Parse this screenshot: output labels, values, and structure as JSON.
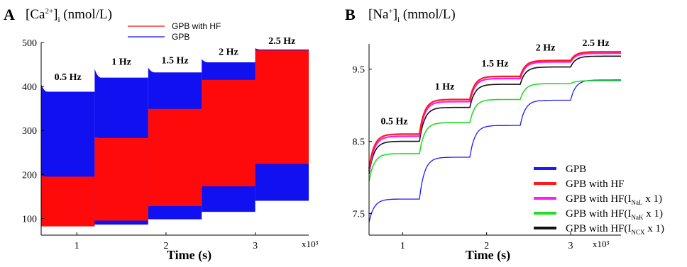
{
  "chart_data": [
    {
      "id": "A",
      "type": "area",
      "panel_label": "A",
      "title": {
        "main": "[Ca",
        "sup": "2+",
        "close": "]",
        "sub": "i",
        "unit": " (nmol/L)"
      },
      "xlabel": "Time (s)",
      "x_multiplier": "x10³",
      "xlim": [
        0.6,
        3.6
      ],
      "ylim": [
        62,
        500
      ],
      "xticks": [
        1,
        2,
        3
      ],
      "xtick_labels": [
        "1",
        "2",
        "3"
      ],
      "yticks": [
        100,
        200,
        300,
        400,
        500
      ],
      "ytick_labels": [
        "100",
        "200",
        "300",
        "400",
        "500"
      ],
      "pacing_labels": [
        "0.5 Hz",
        "1 Hz",
        "1.5 Hz",
        "2 Hz",
        "2.5 Hz"
      ],
      "legend_position": "top",
      "series": [
        {
          "name": "GPB",
          "color": "#1010f0",
          "segments": [
            {
              "x": [
                0.6,
                1.2
              ],
              "min": 85,
              "max_start": 405,
              "max": 388
            },
            {
              "x": [
                1.2,
                1.8
              ],
              "min": 86,
              "max_start": 440,
              "max": 420
            },
            {
              "x": [
                1.8,
                2.4
              ],
              "min": 98,
              "max_start": 443,
              "max": 432
            },
            {
              "x": [
                2.4,
                3.0
              ],
              "min": 115,
              "max_start": 462,
              "max": 455
            },
            {
              "x": [
                3.0,
                3.6
              ],
              "min": 140,
              "max_start": 487,
              "max": 484
            }
          ]
        },
        {
          "name": "GPB with HF",
          "color": "#ff0a0a",
          "segments": [
            {
              "x": [
                0.6,
                1.2
              ],
              "min": 82,
              "max_start": 197,
              "max": 195
            },
            {
              "x": [
                1.2,
                1.8
              ],
              "min": 95,
              "max_start": 285,
              "max": 283
            },
            {
              "x": [
                1.8,
                2.4
              ],
              "min": 128,
              "max_start": 349,
              "max": 349
            },
            {
              "x": [
                2.4,
                3.0
              ],
              "min": 173,
              "max_start": 415,
              "max": 415
            },
            {
              "x": [
                3.0,
                3.6
              ],
              "min": 224,
              "max_start": 482,
              "max": 482
            }
          ]
        }
      ]
    },
    {
      "id": "B",
      "type": "line",
      "panel_label": "B",
      "title": {
        "main": "[Na",
        "sup": "+",
        "close": "]",
        "sub": "i",
        "unit": " (mmol/L)"
      },
      "xlabel": "Time (s)",
      "x_multiplier": "x10³",
      "xlim": [
        0.6,
        3.6
      ],
      "ylim": [
        7.2,
        9.85
      ],
      "xticks": [
        1,
        2,
        3
      ],
      "xtick_labels": [
        "1",
        "2",
        "3"
      ],
      "yticks": [
        7.5,
        8.5,
        9.5
      ],
      "ytick_labels": [
        "7.5",
        "8.5",
        "9.5"
      ],
      "pacing_labels": [
        "0.5 Hz",
        "1 Hz",
        "1.5 Hz",
        "2 Hz",
        "2.5 Hz"
      ],
      "legend_position": "lower right",
      "series": [
        {
          "name": "GPB",
          "legend": {
            "text": "GPB"
          },
          "color": "#1a1aff",
          "width": 1.3,
          "start": 7.38,
          "levels": [
            7.7,
            8.28,
            8.72,
            9.07,
            9.35
          ]
        },
        {
          "name": "GPB with HF",
          "legend": {
            "text": "GPB with HF"
          },
          "color": "#ff1a1a",
          "width": 2.2,
          "start": 8.12,
          "levels": [
            8.6,
            9.08,
            9.4,
            9.62,
            9.74
          ]
        },
        {
          "name": "GPB with HF(INaL x 1)",
          "legend": {
            "text": "GPB with HF(I",
            "sub": "NaL",
            "after": " x 1)"
          },
          "color": "#ff1aff",
          "width": 2.2,
          "start": 8.08,
          "levels": [
            8.57,
            9.05,
            9.37,
            9.6,
            9.72
          ]
        },
        {
          "name": "GPB with HF(INaK x 1)",
          "legend": {
            "text": "GPB with HF(I",
            "sub": "NaK",
            "after": " x 1)"
          },
          "color": "#22dd22",
          "width": 1.6,
          "start": 7.95,
          "levels": [
            8.33,
            8.76,
            9.08,
            9.3,
            9.34
          ]
        },
        {
          "name": "GPB with HF(INCX x 1)",
          "legend": {
            "text": "GPB with HF(I",
            "sub": "NCX",
            "after": " x 1)"
          },
          "color": "#111111",
          "width": 1.6,
          "start": 8.05,
          "levels": [
            8.5,
            8.97,
            9.29,
            9.53,
            9.68
          ]
        }
      ]
    }
  ]
}
